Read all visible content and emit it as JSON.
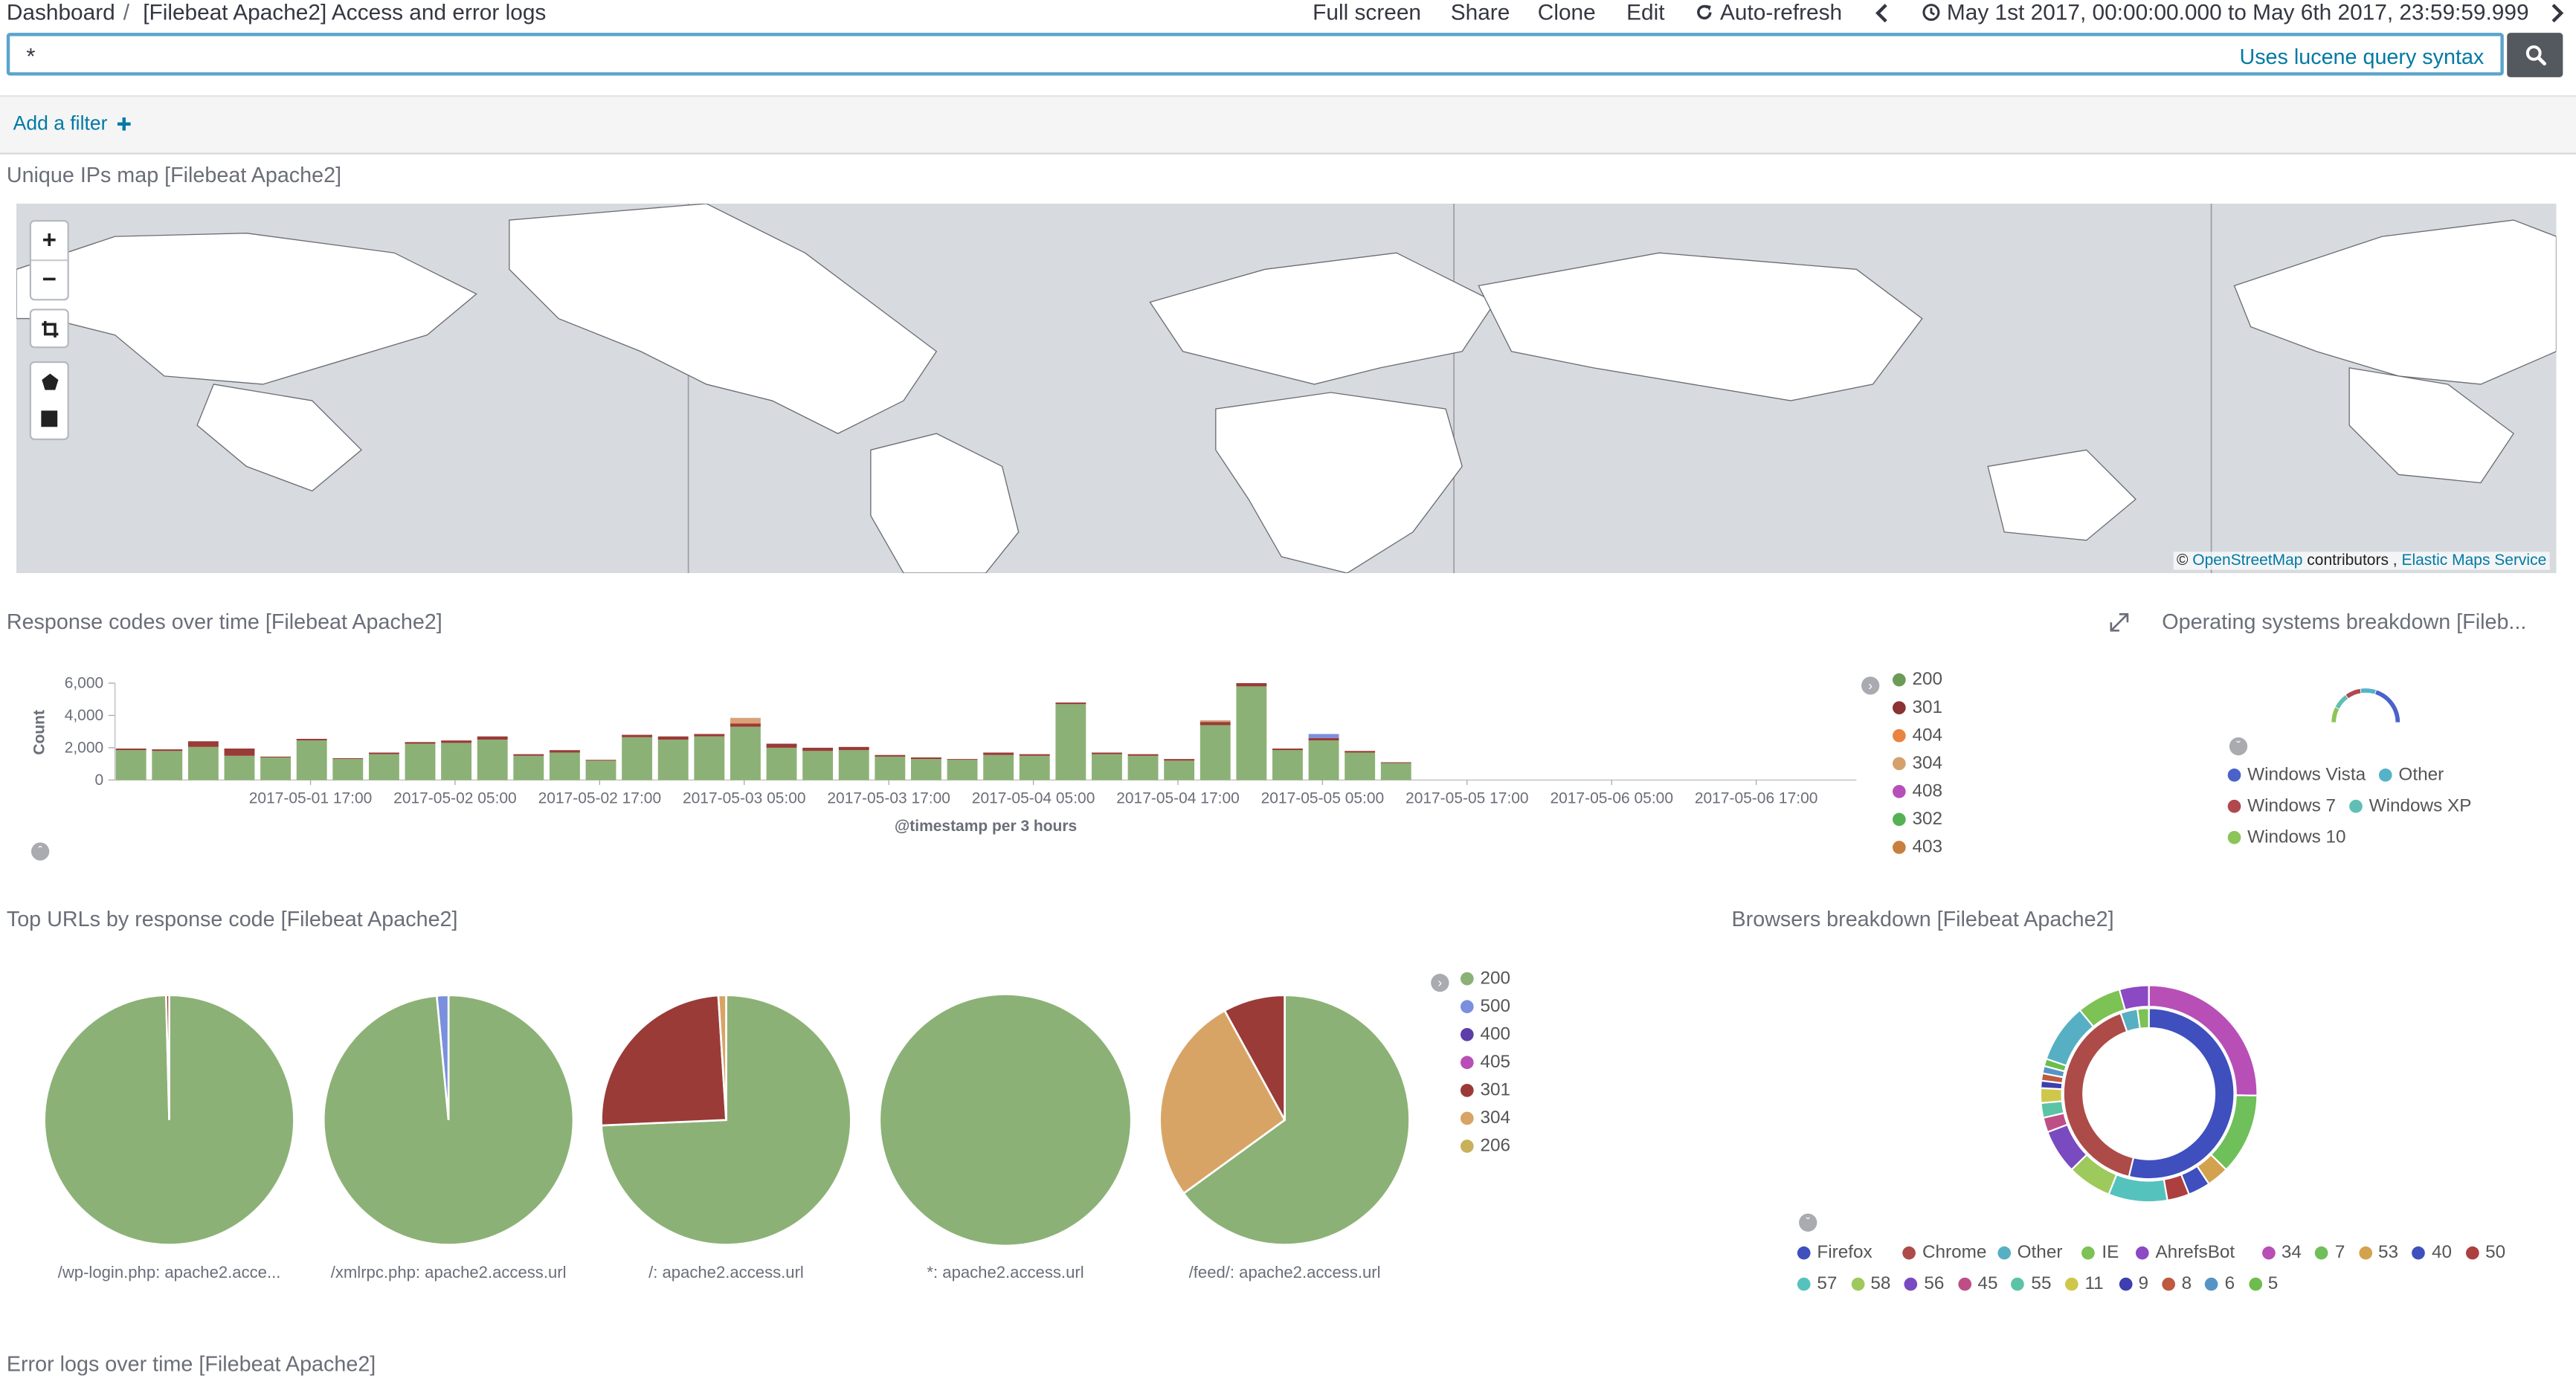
{
  "topnav": {
    "breadcrumb_root": "Dashboard",
    "separator": "/",
    "title": "[Filebeat Apache2] Access and error logs",
    "full_screen": "Full screen",
    "share": "Share",
    "clone": "Clone",
    "edit": "Edit",
    "auto_refresh": "Auto-refresh",
    "time_range": "May 1st 2017, 00:00:00.000 to May 6th 2017, 23:59:59.999"
  },
  "query": {
    "value": "*",
    "hint": "Uses lucene query syntax"
  },
  "filter": {
    "add_label": "Add a filter"
  },
  "panels": {
    "map": {
      "title": "Unique IPs map [Filebeat Apache2]",
      "zoom_in": "+",
      "zoom_out": "−",
      "attribution_prefix": "©",
      "attribution_osm": "OpenStreetMap",
      "attribution_mid": "contributors ,",
      "attribution_ems": "Elastic Maps Service"
    },
    "response_codes": {
      "title": "Response codes over time [Filebeat Apache2]"
    },
    "os": {
      "title": "Operating systems breakdown [Fileb...",
      "legend": [
        {
          "label": "Windows Vista",
          "color": "#4a62c9"
        },
        {
          "label": "Other",
          "color": "#54b3c7"
        },
        {
          "label": "Windows 7",
          "color": "#b0484e"
        },
        {
          "label": "Windows XP",
          "color": "#5fbfb4"
        },
        {
          "label": "Windows 10",
          "color": "#8cc459"
        }
      ]
    },
    "top_urls": {
      "title": "Top URLs by response code [Filebeat Apache2]"
    },
    "browsers": {
      "title": "Browsers breakdown [Filebeat Apache2]",
      "legend": [
        {
          "label": "Firefox",
          "color": "#3f4fbe"
        },
        {
          "label": "Chrome",
          "color": "#ad4b48"
        },
        {
          "label": "Other",
          "color": "#57afc3"
        },
        {
          "label": "IE",
          "color": "#7cc254"
        },
        {
          "label": "AhrefsBot",
          "color": "#8b49c4"
        },
        {
          "label": "34",
          "color": "#b84fb6"
        },
        {
          "label": "7",
          "color": "#6fbf5a"
        },
        {
          "label": "53",
          "color": "#d3a24e"
        },
        {
          "label": "40",
          "color": "#3f4fbe"
        },
        {
          "label": "50",
          "color": "#ad3f3f"
        },
        {
          "label": "57",
          "color": "#56c2bd"
        },
        {
          "label": "58",
          "color": "#9ec95c"
        },
        {
          "label": "56",
          "color": "#7a4ac0"
        },
        {
          "label": "45",
          "color": "#bd4f86"
        },
        {
          "label": "55",
          "color": "#5bc3a6"
        },
        {
          "label": "11",
          "color": "#cfc74c"
        },
        {
          "label": "9",
          "color": "#3d3fae"
        },
        {
          "label": "8",
          "color": "#bd5a40"
        },
        {
          "label": "6",
          "color": "#5694c6"
        },
        {
          "label": "5",
          "color": "#6cbd4c"
        }
      ]
    },
    "error_logs": {
      "title": "Error logs over time [Filebeat Apache2]"
    }
  },
  "chart_data": [
    {
      "type": "bar",
      "stacked": true,
      "xlabel": "@timestamp per 3 hours",
      "ylabel": "Count",
      "ylim": [
        0,
        6000
      ],
      "yticks": [
        "0",
        "2,000",
        "4,000",
        "6,000"
      ],
      "xticks": [
        "2017-05-01 17:00",
        "2017-05-02 05:00",
        "2017-05-02 17:00",
        "2017-05-03 05:00",
        "2017-05-03 17:00",
        "2017-05-04 05:00",
        "2017-05-04 17:00",
        "2017-05-05 05:00",
        "2017-05-05 17:00",
        "2017-05-06 05:00",
        "2017-05-06 17:00"
      ],
      "legend": [
        {
          "label": "200",
          "color": "#6c9a57"
        },
        {
          "label": "301",
          "color": "#8b3232"
        },
        {
          "label": "404",
          "color": "#e8843f"
        },
        {
          "label": "304",
          "color": "#d4a06c"
        },
        {
          "label": "408",
          "color": "#b74fb8"
        },
        {
          "label": "302",
          "color": "#56b155"
        },
        {
          "label": "403",
          "color": "#c87e3d"
        }
      ],
      "series": [
        {
          "name": "200",
          "color": "#8cb176",
          "values": [
            1850,
            1800,
            2050,
            1500,
            1400,
            2450,
            1300,
            1600,
            2250,
            2300,
            2500,
            1500,
            1700,
            1200,
            2650,
            2500,
            2700,
            3300,
            2000,
            1800,
            1850,
            1450,
            1300,
            1250,
            1550,
            1500,
            4700,
            1600,
            1500,
            1200,
            3400,
            5800,
            1850,
            2450,
            1700,
            1050
          ]
        },
        {
          "name": "301",
          "color": "#9a3b38",
          "values": [
            100,
            100,
            350,
            450,
            50,
            100,
            50,
            100,
            100,
            150,
            200,
            100,
            150,
            50,
            150,
            200,
            150,
            200,
            250,
            200,
            200,
            100,
            100,
            50,
            150,
            100,
            100,
            100,
            100,
            100,
            200,
            200,
            100,
            150,
            100,
            50
          ]
        },
        {
          "name": "404",
          "color": "#e8843f",
          "values": [
            0,
            0,
            0,
            0,
            0,
            0,
            0,
            0,
            0,
            0,
            0,
            0,
            0,
            0,
            0,
            0,
            0,
            50,
            0,
            0,
            0,
            0,
            0,
            0,
            0,
            0,
            0,
            0,
            0,
            0,
            0,
            0,
            0,
            0,
            0,
            0
          ]
        },
        {
          "name": "304",
          "color": "#d8a37a",
          "values": [
            0,
            0,
            0,
            0,
            0,
            0,
            0,
            0,
            0,
            0,
            0,
            0,
            0,
            0,
            0,
            0,
            0,
            300,
            0,
            0,
            0,
            0,
            0,
            0,
            0,
            0,
            0,
            0,
            0,
            0,
            100,
            0,
            0,
            0,
            0,
            0
          ]
        },
        {
          "name": "408",
          "color": "#7d8fdb",
          "values": [
            0,
            0,
            0,
            0,
            0,
            0,
            0,
            0,
            0,
            0,
            0,
            0,
            0,
            0,
            0,
            0,
            0,
            0,
            0,
            0,
            0,
            0,
            0,
            0,
            0,
            0,
            0,
            0,
            0,
            0,
            0,
            0,
            0,
            250,
            0,
            0
          ]
        }
      ]
    },
    {
      "type": "pie",
      "legend": [
        {
          "label": "200",
          "color": "#8cb176"
        },
        {
          "label": "500",
          "color": "#7a8fdd"
        },
        {
          "label": "400",
          "color": "#5b3ea8"
        },
        {
          "label": "405",
          "color": "#b84fb6"
        },
        {
          "label": "301",
          "color": "#9a3b38"
        },
        {
          "label": "304",
          "color": "#d8a466"
        },
        {
          "label": "206",
          "color": "#c9b05a"
        }
      ],
      "pies": [
        {
          "label": "/wp-login.php: apache2.acce...",
          "slices": [
            {
              "name": "200",
              "value": 99.6
            },
            {
              "name": "301",
              "value": 0.4
            }
          ]
        },
        {
          "label": "/xmlrpc.php: apache2.access.url",
          "slices": [
            {
              "name": "200",
              "value": 98.5
            },
            {
              "name": "500",
              "value": 1.5
            }
          ]
        },
        {
          "label": "/: apache2.access.url",
          "slices": [
            {
              "name": "200",
              "value": 74.3
            },
            {
              "name": "301",
              "value": 24.7
            },
            {
              "name": "304",
              "value": 1.0
            }
          ]
        },
        {
          "label": "*: apache2.access.url",
          "slices": [
            {
              "name": "200",
              "value": 100
            }
          ]
        },
        {
          "label": "/feed/: apache2.access.url",
          "slices": [
            {
              "name": "200",
              "value": 65
            },
            {
              "name": "304",
              "value": 27
            },
            {
              "name": "301",
              "value": 8
            }
          ]
        }
      ]
    },
    {
      "type": "pie",
      "donut": true,
      "rings": [
        {
          "name": "inner",
          "slices": [
            {
              "name": "Firefox",
              "value": 50
            },
            {
              "name": "Chrome",
              "value": 38
            },
            {
              "name": "Other",
              "value": 3
            },
            {
              "name": "IE",
              "value": 2
            }
          ]
        },
        {
          "name": "outer",
          "slices": [
            {
              "name": "34",
              "value": 23
            },
            {
              "name": "7",
              "value": 11
            },
            {
              "name": "53",
              "value": 3
            },
            {
              "name": "40",
              "value": 3
            },
            {
              "name": "50",
              "value": 3
            },
            {
              "name": "57",
              "value": 8
            },
            {
              "name": "58",
              "value": 6
            },
            {
              "name": "56",
              "value": 6
            },
            {
              "name": "45",
              "value": 2
            },
            {
              "name": "55",
              "value": 2
            },
            {
              "name": "11",
              "value": 2
            },
            {
              "name": "9",
              "value": 1
            },
            {
              "name": "8",
              "value": 1
            },
            {
              "name": "6",
              "value": 1
            },
            {
              "name": "5",
              "value": 1
            },
            {
              "name": "Other",
              "value": 8
            },
            {
              "name": "IE",
              "value": 6
            },
            {
              "name": "AhrefsBot",
              "value": 4
            }
          ]
        }
      ]
    },
    {
      "type": "pie",
      "donut": true,
      "rings": [
        {
          "name": "os",
          "slices": [
            {
              "name": "Windows Vista",
              "value": 40
            },
            {
              "name": "Other",
              "value": 15
            },
            {
              "name": "Windows 7",
              "value": 15
            },
            {
              "name": "Windows XP",
              "value": 15
            },
            {
              "name": "Windows 10",
              "value": 15
            }
          ]
        }
      ]
    }
  ]
}
